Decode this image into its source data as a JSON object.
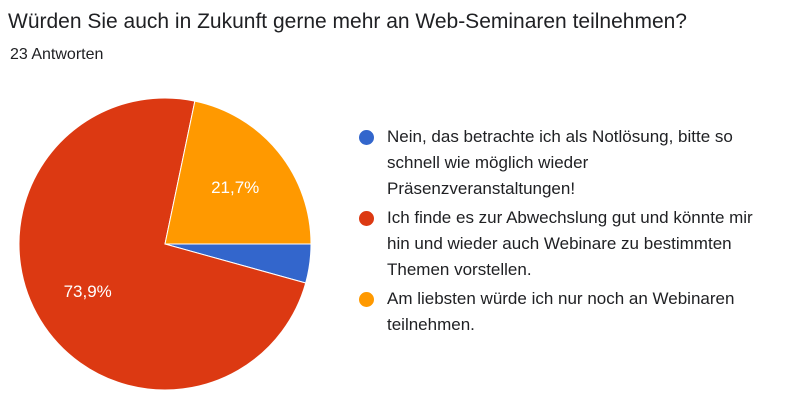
{
  "title": "Würden Sie auch in Zukunft gerne mehr an Web-Seminaren teilnehmen?",
  "subtitle": "23 Antworten",
  "chart_data": {
    "type": "pie",
    "title": "Würden Sie auch in Zukunft gerne mehr an Web-Seminaren teilnehmen?",
    "total_responses": 23,
    "legend_position": "right",
    "slices": [
      {
        "label": "Nein, das betrachte ich als Notlösung, bitte so schnell wie möglich wieder Präsenzveranstaltungen!",
        "value": 4.3,
        "count": 1,
        "display_label": "",
        "color": "#3366CC"
      },
      {
        "label": "Ich finde es zur Abwechslung gut und könnte mir hin und wieder auch Webinare zu bestimmten Themen vorstellen.",
        "value": 73.9,
        "count": 17,
        "display_label": "73,9%",
        "color": "#DC3912"
      },
      {
        "label": "Am liebsten würde ich nur noch an Webinaren teilnehmen.",
        "value": 21.7,
        "count": 5,
        "display_label": "21,7%",
        "color": "#FF9900"
      }
    ]
  }
}
